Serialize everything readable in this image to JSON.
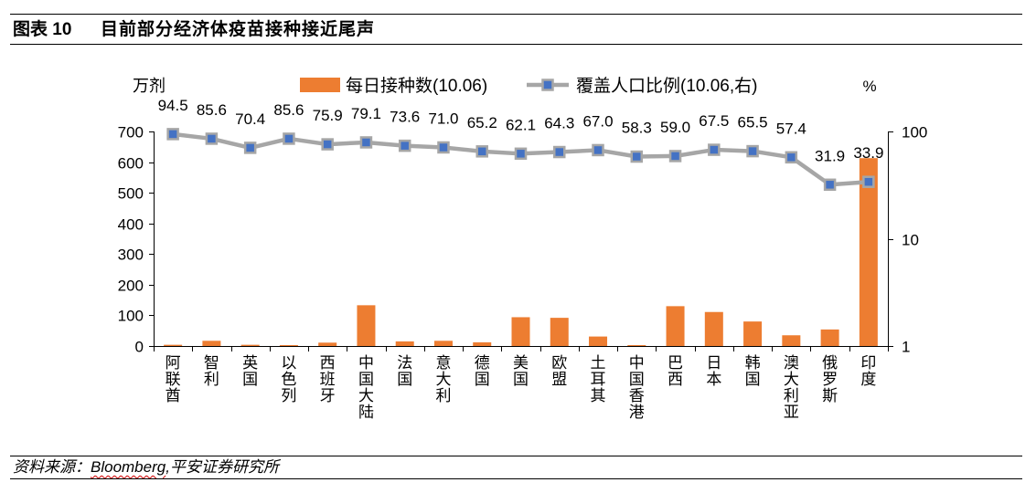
{
  "figure": {
    "label": "图表 10"
  },
  "source": {
    "prefix": "资料来源：",
    "name": "Bloomberg",
    "suffix": ",平安证券研究所"
  },
  "chart_data": {
    "type": "bar",
    "title": "目前部分经济体疫苗接种接近尾声",
    "categories": [
      "阿联酋",
      "智利",
      "英国",
      "以色列",
      "西班牙",
      "中国大陆",
      "法国",
      "意大利",
      "德国",
      "美国",
      "欧盟",
      "土耳其",
      "中国香港",
      "巴西",
      "日本",
      "韩国",
      "澳大利亚",
      "俄罗斯",
      "印度"
    ],
    "series": [
      {
        "name": "每日接种数(10.06)",
        "type": "bar",
        "axis": "left",
        "color": "#ED7D31",
        "values": [
          4,
          17,
          4,
          3,
          11,
          133,
          15,
          17,
          12,
          94,
          92,
          31,
          3,
          130,
          111,
          80,
          35,
          54,
          613
        ]
      },
      {
        "name": "覆盖人口比例(10.06,右)",
        "type": "line",
        "axis": "right",
        "color": "#A6A6A6",
        "marker_color": "#4472C4",
        "data_labels": true,
        "values": [
          94.5,
          85.6,
          70.4,
          85.6,
          75.9,
          79.1,
          73.6,
          71.0,
          65.2,
          62.1,
          64.3,
          67.0,
          58.3,
          59.0,
          67.5,
          65.5,
          57.4,
          31.9,
          33.9
        ]
      }
    ],
    "y_axis": {
      "label": "万剂",
      "range": [
        0,
        700
      ],
      "ticks": [
        0,
        100,
        200,
        300,
        400,
        500,
        600,
        700
      ]
    },
    "y2_axis": {
      "label": "%",
      "scale": "log",
      "range": [
        1,
        100
      ],
      "ticks": [
        1,
        10,
        100
      ]
    },
    "legend": "top",
    "grid": false
  }
}
